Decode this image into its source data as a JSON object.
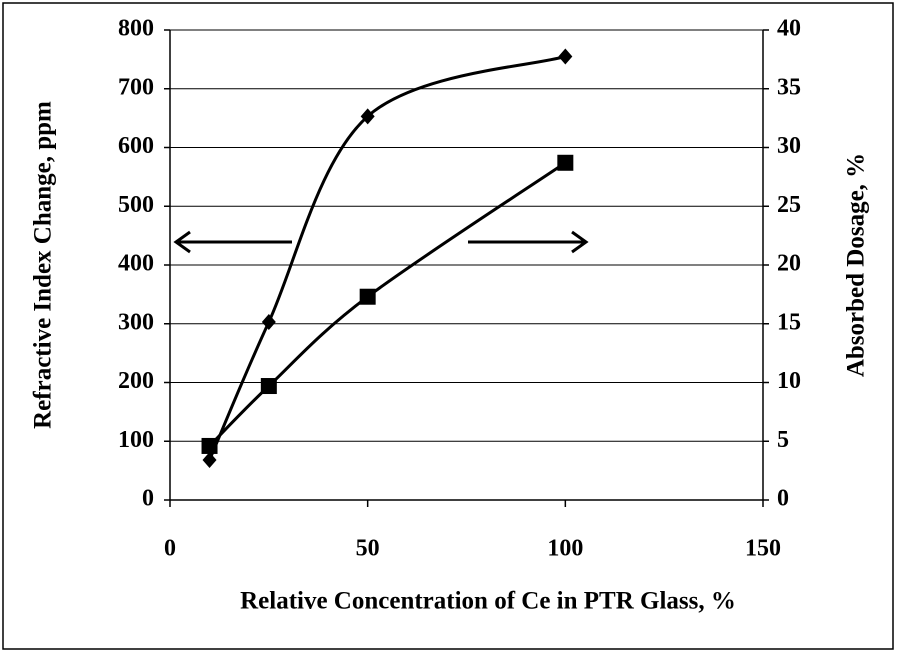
{
  "chart_data": {
    "type": "line",
    "xlabel": "Relative Concentration of Ce in PTR Glass, %",
    "ylabel": "Refractive Index Change, ppm",
    "y2label": "Absorbed Dosage, %",
    "xlim": [
      0,
      150
    ],
    "xticks": [
      0,
      50,
      100,
      150
    ],
    "ylim": [
      0,
      800
    ],
    "yticks": [
      0,
      100,
      200,
      300,
      400,
      500,
      600,
      700,
      800
    ],
    "y2lim": [
      0,
      40
    ],
    "y2ticks": [
      0,
      5,
      10,
      15,
      20,
      25,
      30,
      35,
      40
    ],
    "grid": true,
    "series": [
      {
        "color": "#000000",
        "marker": "diamond",
        "x": [
          10,
          25,
          50,
          100
        ],
        "values": [
          68,
          303,
          653,
          755
        ]
      },
      {
        "color": "#000000",
        "marker": "square",
        "axis": "y2",
        "x": [
          10,
          25,
          50,
          100
        ],
        "values": [
          4.6,
          9.7,
          17.3,
          28.7
        ]
      }
    ]
  }
}
